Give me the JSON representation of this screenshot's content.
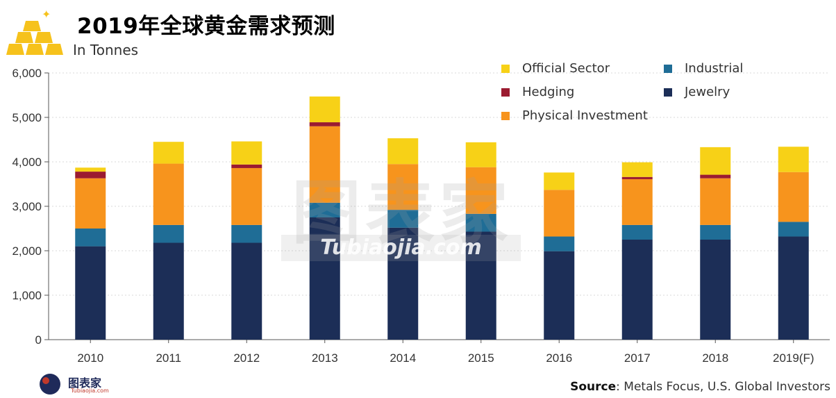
{
  "header": {
    "title": "2019年全球黄金需求预测",
    "units": "In Tonnes"
  },
  "footer": {
    "source_label": "Source",
    "source_text": ": Metals Focus, U.S. Global Investors",
    "brand_name": "图表家",
    "brand_sub": "Tubiaojia.com"
  },
  "watermark": {
    "text": "图表家",
    "sub": "Tubiaojia.com"
  },
  "colors": {
    "jewelry": "#1c2e57",
    "industrial": "#1f6d96",
    "physical_investment": "#f7941d",
    "hedging": "#9b1b30",
    "official_sector": "#f7d117",
    "gridline": "#d9d9d9",
    "axis": "#555555"
  },
  "chart_data": {
    "type": "bar",
    "stacked": true,
    "title": "2019年全球黄金需求预测",
    "ylabel": "In Tonnes",
    "xlabel": "",
    "ylim": [
      0,
      6000
    ],
    "yticks": [
      0,
      1000,
      2000,
      3000,
      4000,
      5000,
      6000
    ],
    "ytick_labels": [
      "0",
      "1,000",
      "2,000",
      "3,000",
      "4,000",
      "5,000",
      "6,000"
    ],
    "categories": [
      "2010",
      "2011",
      "2012",
      "2013",
      "2014",
      "2015",
      "2016",
      "2017",
      "2018",
      "2019(F)"
    ],
    "series": [
      {
        "name": "Jewelry",
        "color_key": "jewelry",
        "values": [
          2100,
          2180,
          2180,
          2750,
          2520,
          2430,
          1990,
          2250,
          2250,
          2320
        ]
      },
      {
        "name": "Industrial",
        "color_key": "industrial",
        "values": [
          400,
          400,
          400,
          330,
          400,
          400,
          330,
          330,
          330,
          330
        ]
      },
      {
        "name": "Physical Investment",
        "color_key": "physical_investment",
        "values": [
          1130,
          1380,
          1280,
          1720,
          1030,
          1050,
          1050,
          1030,
          1050,
          1120
        ]
      },
      {
        "name": "Hedging",
        "color_key": "hedging",
        "values": [
          150,
          0,
          80,
          90,
          0,
          0,
          0,
          50,
          80,
          0
        ]
      },
      {
        "name": "Official Sector",
        "color_key": "official_sector",
        "values": [
          90,
          490,
          520,
          580,
          580,
          560,
          390,
          330,
          620,
          570
        ]
      }
    ],
    "legend": {
      "position": "top-right",
      "entries": [
        "Official Sector",
        "Industrial",
        "Hedging",
        "Jewelry",
        "Physical Investment"
      ]
    }
  }
}
